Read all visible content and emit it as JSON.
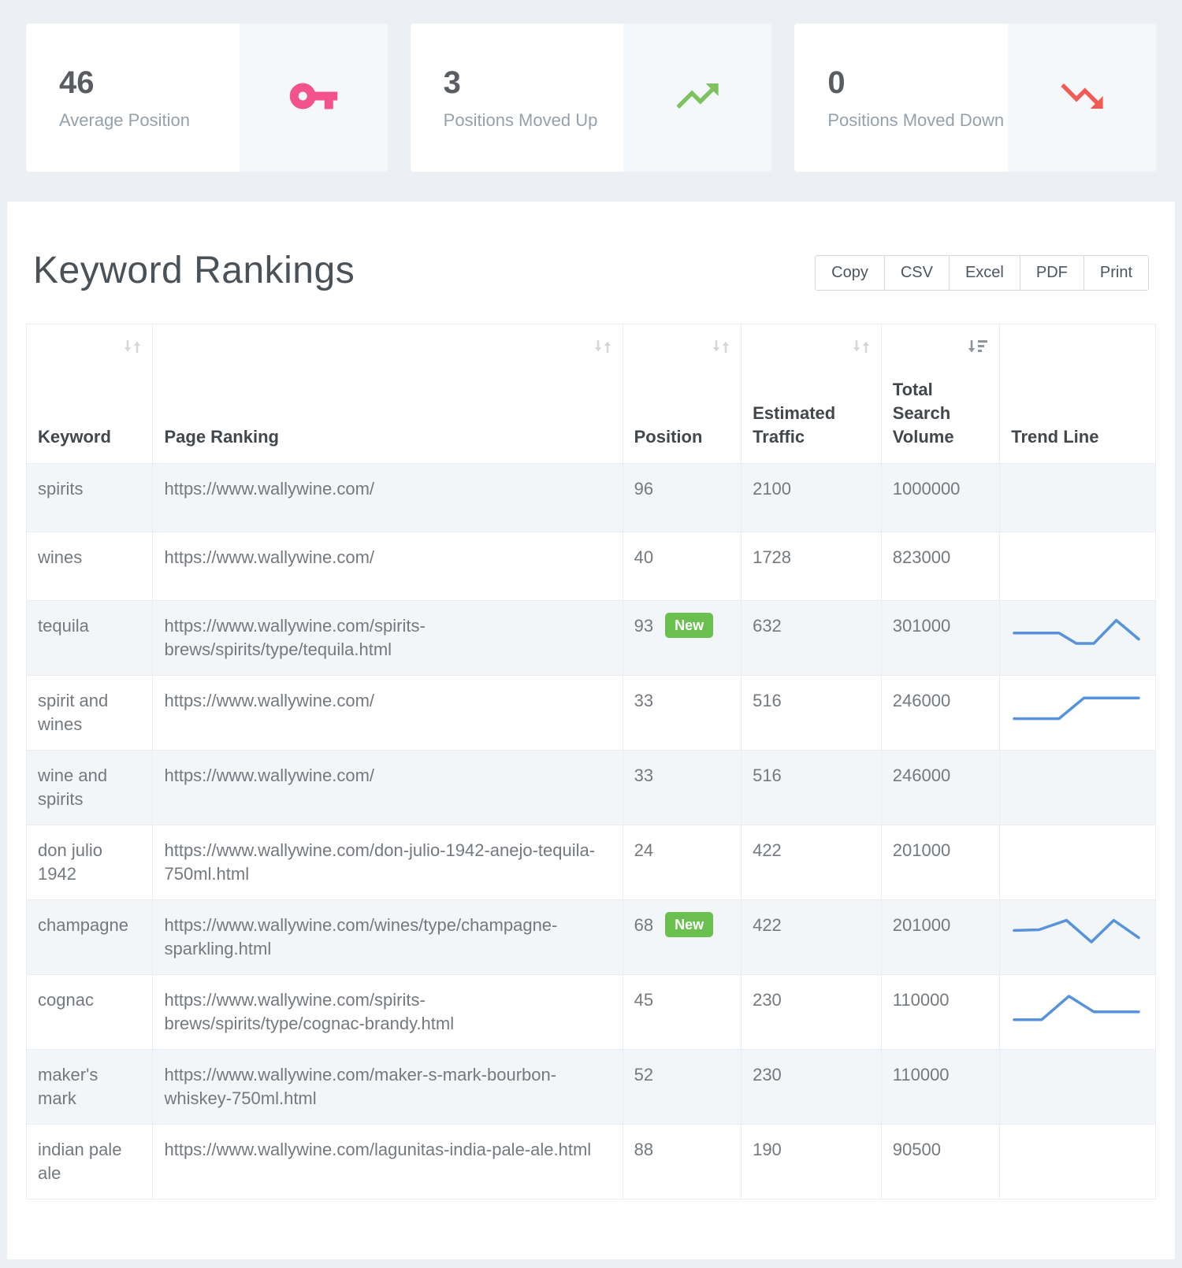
{
  "stats": [
    {
      "value": "46",
      "label": "Average Position",
      "icon": "key"
    },
    {
      "value": "3",
      "label": "Positions Moved Up",
      "icon": "trending-up"
    },
    {
      "value": "0",
      "label": "Positions Moved Down",
      "icon": "trending-down"
    }
  ],
  "panel": {
    "title": "Keyword Rankings",
    "export_buttons": [
      "Copy",
      "CSV",
      "Excel",
      "PDF",
      "Print"
    ]
  },
  "table": {
    "columns": [
      "Keyword",
      "Page Ranking",
      "Position",
      "Estimated Traffic",
      "Total Search Volume",
      "Trend Line"
    ],
    "sorted_column": "Total Search Volume",
    "sort_direction": "descending",
    "rows": [
      {
        "keyword": "spirits",
        "page": "https://www.wallywine.com/",
        "position": "96",
        "traffic": "2100",
        "volume": "1000000",
        "trend": []
      },
      {
        "keyword": "wines",
        "page": "https://www.wallywine.com/",
        "position": "40",
        "traffic": "1728",
        "volume": "823000",
        "trend": []
      },
      {
        "keyword": "tequila",
        "page": "https://www.wallywine.com/spirits-brews/spirits/type/tequila.html",
        "position": "93",
        "badge": "New",
        "traffic": "632",
        "volume": "301000",
        "trend": [
          [
            0,
            55
          ],
          [
            36,
            55
          ],
          [
            50,
            26
          ],
          [
            64,
            26
          ],
          [
            82,
            90
          ],
          [
            100,
            38
          ]
        ]
      },
      {
        "keyword": "spirit and wines",
        "page": "https://www.wallywine.com/",
        "position": "33",
        "traffic": "516",
        "volume": "246000",
        "trend": [
          [
            0,
            25
          ],
          [
            36,
            25
          ],
          [
            56,
            82
          ],
          [
            100,
            82
          ]
        ]
      },
      {
        "keyword": "wine and spirits",
        "page": "https://www.wallywine.com/",
        "position": "33",
        "traffic": "516",
        "volume": "246000",
        "trend": []
      },
      {
        "keyword": "don julio 1942",
        "page": "https://www.wallywine.com/don-julio-1942-anejo-tequila-750ml.html",
        "position": "24",
        "traffic": "422",
        "volume": "201000",
        "trend": []
      },
      {
        "keyword": "champagne",
        "page": "https://www.wallywine.com/wines/type/champagne-sparkling.html",
        "position": "68",
        "badge": "New",
        "traffic": "422",
        "volume": "201000",
        "trend": [
          [
            0,
            60
          ],
          [
            20,
            62
          ],
          [
            42,
            88
          ],
          [
            62,
            28
          ],
          [
            80,
            88
          ],
          [
            100,
            40
          ]
        ]
      },
      {
        "keyword": "cognac",
        "page": "https://www.wallywine.com/spirits-brews/spirits/type/cognac-brandy.html",
        "position": "45",
        "traffic": "230",
        "volume": "110000",
        "trend": [
          [
            0,
            20
          ],
          [
            22,
            20
          ],
          [
            44,
            85
          ],
          [
            64,
            42
          ],
          [
            100,
            42
          ]
        ]
      },
      {
        "keyword": "maker's mark",
        "page": "https://www.wallywine.com/maker-s-mark-bourbon-whiskey-750ml.html",
        "position": "52",
        "traffic": "230",
        "volume": "110000",
        "trend": []
      },
      {
        "keyword": "indian pale ale",
        "page": "https://www.wallywine.com/lagunitas-india-pale-ale.html",
        "position": "88",
        "traffic": "190",
        "volume": "90500",
        "trend": []
      }
    ]
  },
  "colors": {
    "key_icon": "#f2538a",
    "up_icon": "#7dc25f",
    "down_icon": "#f15a55",
    "badge": "#6abf4f",
    "sparkline": "#5793dc",
    "stripe": "#f3f6f9"
  }
}
